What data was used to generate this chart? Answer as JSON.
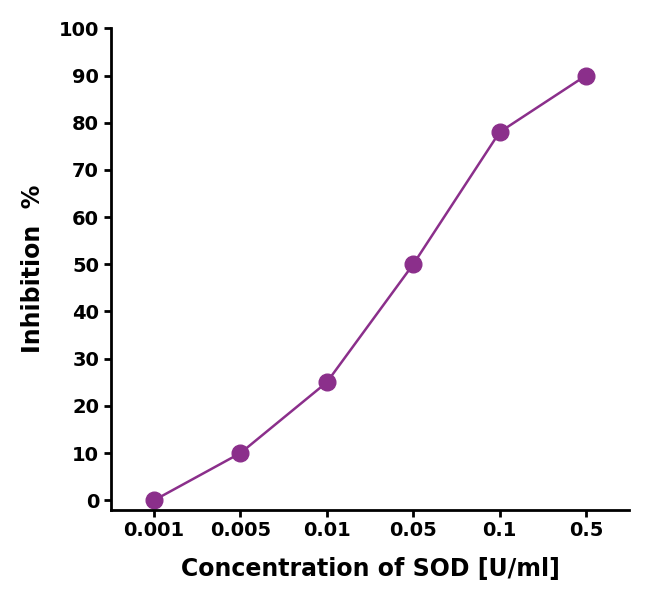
{
  "x_positions": [
    1,
    2,
    3,
    4,
    5,
    6
  ],
  "y": [
    0,
    10,
    25,
    50,
    78,
    90
  ],
  "color": "#8B2F8B",
  "marker": "o",
  "marker_size": 12,
  "line_width": 1.8,
  "xlabel": "Concentration of SOD [U/ml]",
  "ylabel": "Inhibition  %",
  "ylim": [
    -2,
    100
  ],
  "yticks": [
    0,
    10,
    20,
    30,
    40,
    50,
    60,
    70,
    80,
    90,
    100
  ],
  "xtick_labels": [
    "0.001",
    "0.005",
    "0.01",
    "0.05",
    "0.1",
    "0.5"
  ],
  "xlabel_fontsize": 17,
  "ylabel_fontsize": 17,
  "tick_fontsize": 14,
  "background_color": "#ffffff"
}
